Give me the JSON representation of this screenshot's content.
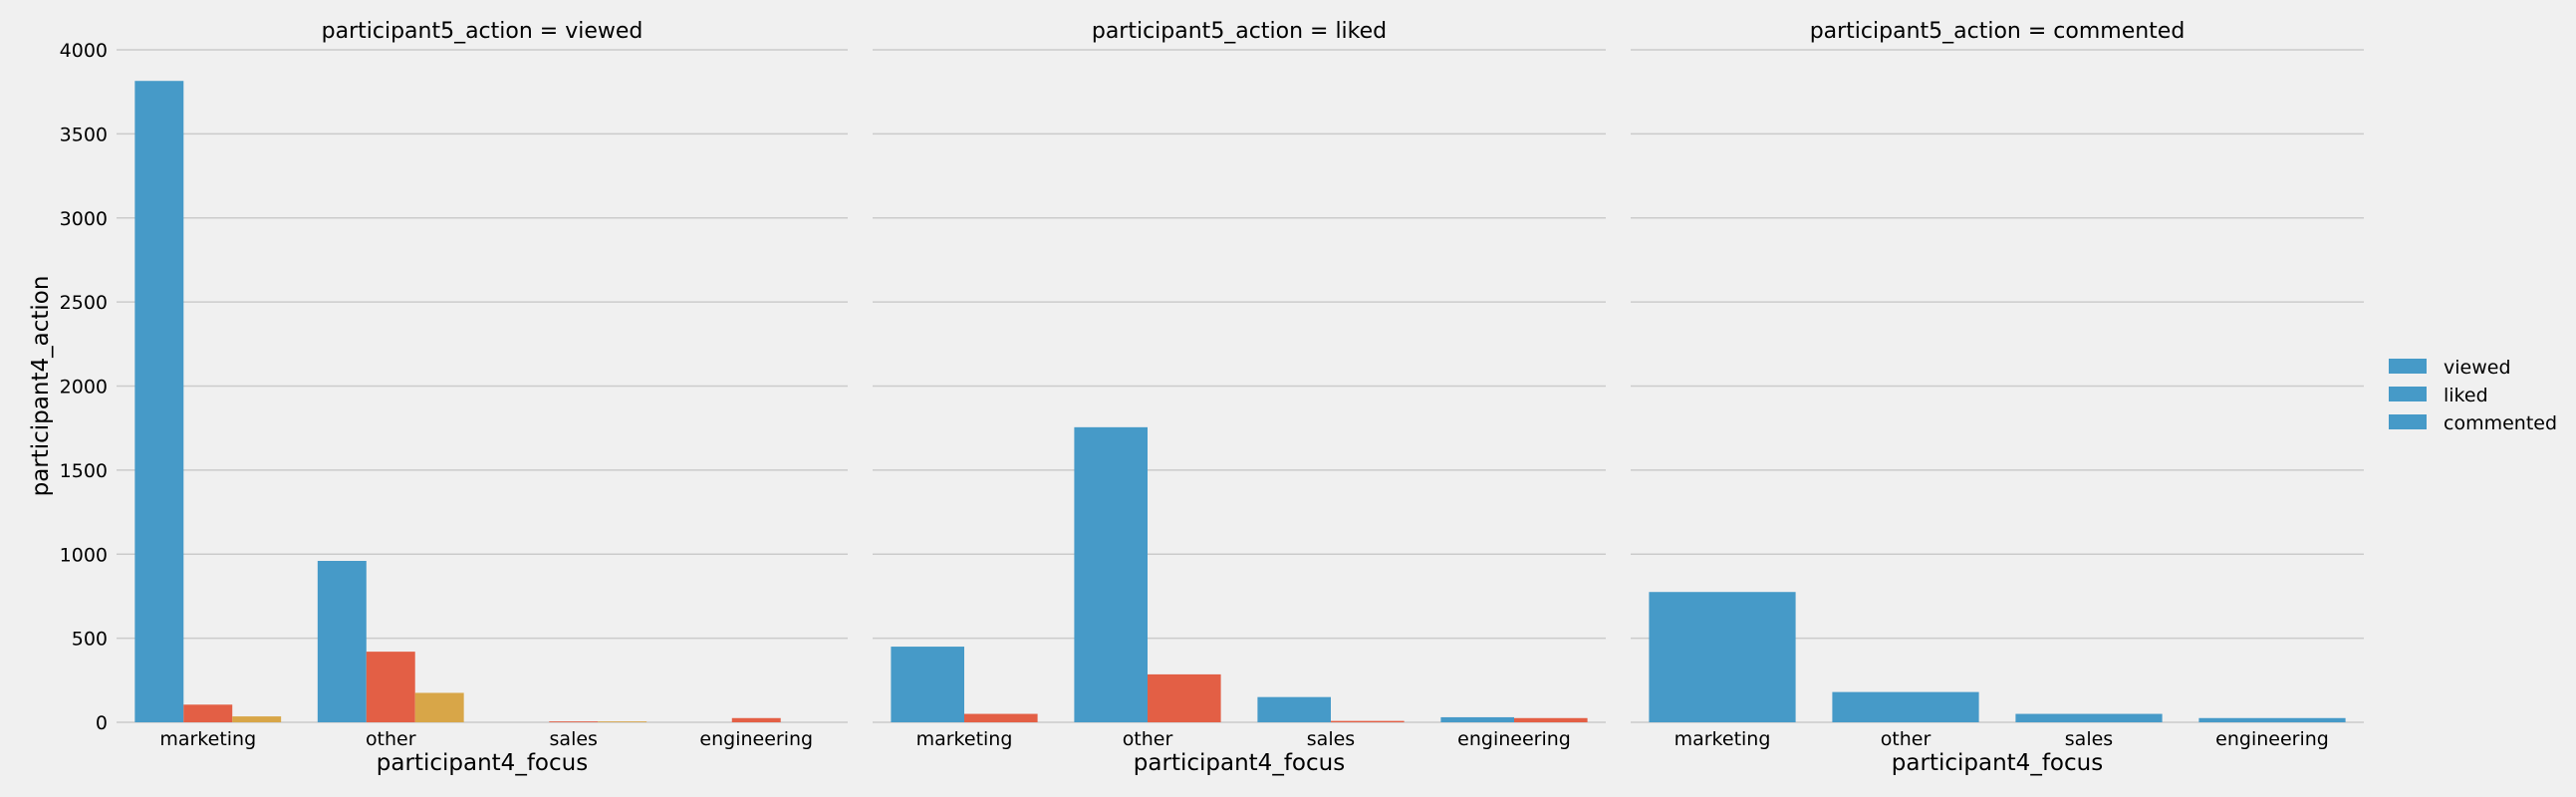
{
  "chart_data": {
    "type": "bar",
    "layout": "facet-columns",
    "facet_titles": [
      "participant5_action = viewed",
      "participant5_action = liked",
      "participant5_action = commented"
    ],
    "xlabel": "participant4_focus",
    "ylabel": "participant4_action",
    "categories": [
      "marketing",
      "other",
      "sales",
      "engineering"
    ],
    "ylim": [
      0,
      4000
    ],
    "yticks": [
      "0",
      "500",
      "1000",
      "1500",
      "2000",
      "2500",
      "3000",
      "3500",
      "4000"
    ],
    "grid": true,
    "legend": {
      "placement": "right",
      "entries": [
        "viewed",
        "liked",
        "commented"
      ],
      "colors": [
        "#469ac8",
        "#469ac8",
        "#469ac8"
      ]
    },
    "facets": [
      {
        "series": [
          {
            "color": "#469ac8",
            "values": [
              3815,
              960,
              0,
              0
            ]
          },
          {
            "color": "#e35f45",
            "values": [
              105,
              420,
              5,
              25
            ]
          },
          {
            "color": "#d8a648",
            "values": [
              35,
              175,
              5,
              0
            ]
          }
        ]
      },
      {
        "series": [
          {
            "color": "#469ac8",
            "values": [
              450,
              1755,
              150,
              30
            ]
          },
          {
            "color": "#e35f45",
            "values": [
              50,
              285,
              8,
              25
            ]
          }
        ]
      },
      {
        "series": [
          {
            "color": "#469ac8",
            "values": [
              775,
              180,
              50,
              25
            ]
          }
        ]
      }
    ]
  }
}
